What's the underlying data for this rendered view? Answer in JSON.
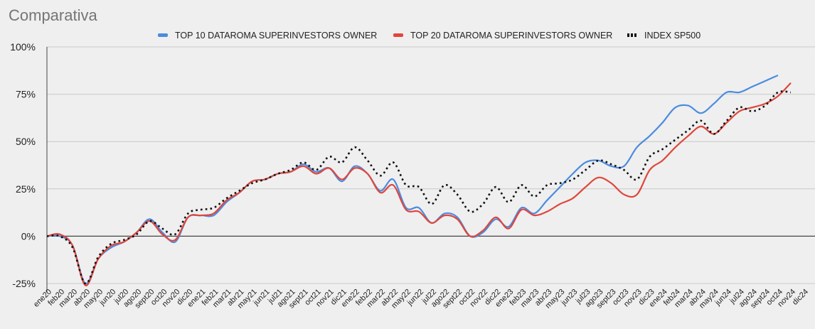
{
  "chart_data": {
    "type": "line",
    "title": "Comparativa",
    "legend_position": "top",
    "grid": true,
    "ylim": [
      -25,
      100
    ],
    "yticks": [
      -25,
      0,
      25,
      50,
      75,
      100
    ],
    "ytick_labels": [
      "-25%",
      "0%",
      "25%",
      "50%",
      "75%",
      "100%"
    ],
    "x": [
      "ene20",
      "feb20",
      "mar20",
      "abr20",
      "may20",
      "jun20",
      "jul20",
      "ago20",
      "sept20",
      "oct20",
      "nov20",
      "dic20",
      "ene21",
      "feb21",
      "mar21",
      "abr21",
      "may21",
      "jun21",
      "jul21",
      "ago21",
      "sept21",
      "oct21",
      "nov21",
      "dic21",
      "ene22",
      "feb22",
      "mar22",
      "abr22",
      "may22",
      "jun22",
      "jul22",
      "ago22",
      "sept22",
      "oct22",
      "nov22",
      "dic22",
      "ene23",
      "feb23",
      "mar23",
      "abr23",
      "may23",
      "jun23",
      "jul23",
      "ago23",
      "sept23",
      "oct23",
      "nov23",
      "dic23",
      "ene24",
      "feb24",
      "mar24",
      "abr24",
      "may24",
      "jun24",
      "jul24",
      "ago24",
      "sept24",
      "oct24",
      "nov24",
      "dic24"
    ],
    "series": [
      {
        "name": "TOP 10 DATAROMA SUPERINVESTORS OWNER",
        "color": "#4a8ce0",
        "style": "solid",
        "values": [
          0,
          0,
          -5,
          -25,
          -12,
          -6,
          -3,
          2,
          9,
          2,
          -3,
          10,
          11,
          11,
          18,
          23,
          29,
          30,
          33,
          34,
          38,
          34,
          36,
          29,
          37,
          33,
          24,
          30,
          15,
          15,
          7,
          12,
          10,
          0,
          2,
          9,
          5,
          15,
          12,
          19,
          26,
          33,
          39,
          40,
          37,
          37,
          47,
          53,
          60,
          68,
          69,
          65,
          70,
          76,
          76,
          79,
          82,
          85,
          null,
          null
        ]
      },
      {
        "name": "TOP 20 DATAROMA SUPERINVESTORS OWNER",
        "color": "#e0463c",
        "style": "solid",
        "values": [
          0,
          1,
          -5,
          -26,
          -12,
          -5,
          -3,
          2,
          8,
          1,
          -2,
          10,
          11,
          12,
          19,
          23,
          29,
          30,
          33,
          34,
          37,
          33,
          36,
          30,
          36,
          33,
          23,
          27,
          14,
          13,
          7,
          11,
          9,
          0,
          3,
          10,
          4,
          14,
          11,
          13,
          17,
          20,
          26,
          31,
          28,
          22,
          22,
          35,
          40,
          47,
          53,
          58,
          54,
          60,
          66,
          68,
          70,
          74,
          81,
          null
        ]
      },
      {
        "name": "INDEX SP500",
        "color": "#111111",
        "style": "dotted",
        "values": [
          0,
          0,
          -6,
          -25,
          -11,
          -4,
          -2,
          1,
          8,
          4,
          1,
          12,
          14,
          15,
          20,
          24,
          28,
          30,
          33,
          35,
          39,
          35,
          42,
          39,
          47,
          40,
          32,
          39,
          27,
          26,
          17,
          27,
          22,
          13,
          17,
          26,
          18,
          27,
          21,
          27,
          28,
          30,
          35,
          40,
          38,
          35,
          30,
          42,
          46,
          51,
          56,
          61,
          54,
          61,
          68,
          66,
          69,
          76,
          76,
          null
        ]
      }
    ]
  }
}
